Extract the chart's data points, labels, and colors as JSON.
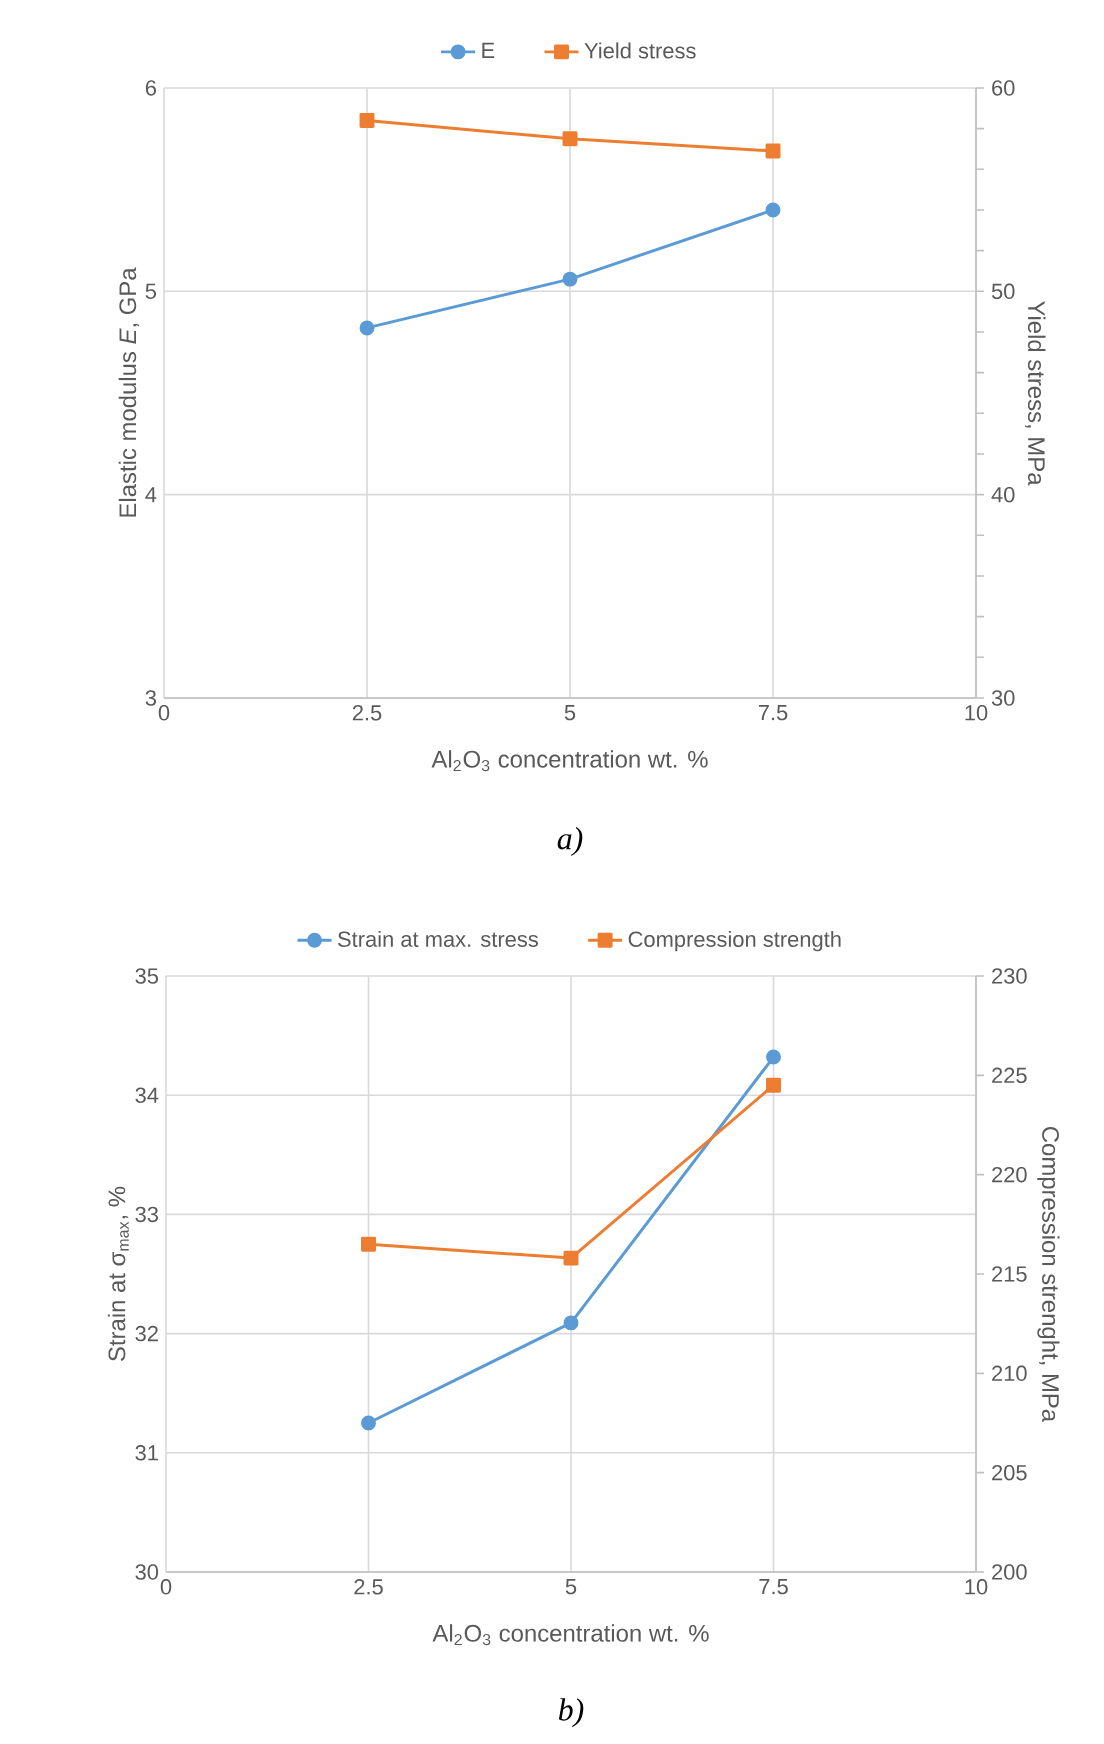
{
  "chart_data": [
    {
      "type": "line",
      "xlabel": "Al$_{2}$O$_{3}$ concentration wt. %",
      "ylabel": "Elastic modulus *E*, GPa",
      "y2label": "Yield stress, MPa",
      "annotations": [
        "a)"
      ],
      "x": [
        2.5,
        5,
        7.5
      ],
      "xlim": [
        0,
        10
      ],
      "xticks": [
        0,
        2.5,
        5,
        7.5,
        10
      ],
      "ylim": [
        3,
        6
      ],
      "yticks": [
        3,
        4,
        5,
        6
      ],
      "y2lim": [
        30,
        60
      ],
      "y2ticks": [
        30,
        {
          "value": 32,
          "label": null
        },
        {
          "value": 34,
          "label": null
        },
        {
          "value": 36,
          "label": null
        },
        {
          "value": 38,
          "label": null
        },
        40,
        {
          "value": 42,
          "label": null
        },
        {
          "value": 44,
          "label": null
        },
        {
          "value": 46,
          "label": null
        },
        {
          "value": 48,
          "label": null
        },
        50,
        {
          "value": 52,
          "label": null
        },
        {
          "value": 54,
          "label": null
        },
        {
          "value": 56,
          "label": null
        },
        {
          "value": 58,
          "label": null
        },
        60
      ],
      "grid": true,
      "legend": "top",
      "series": [
        {
          "name": "E",
          "color": "#5b9bd5",
          "marker": "circle",
          "values": [
            4.82,
            5.06,
            5.4
          ]
        },
        {
          "name": "Yield stress",
          "color": "#ed7d31",
          "marker": "square",
          "axis": "y2",
          "values": [
            58.4,
            57.5,
            56.9
          ]
        }
      ]
    },
    {
      "type": "line",
      "xlabel": "Al$_{2}$O$_{3}$ concentration wt. %",
      "ylabel": "Strain at σ$_{max}$, %",
      "y2label": "Compression strenght, MPa",
      "annotations": [
        "b)"
      ],
      "x": [
        2.5,
        5,
        7.5
      ],
      "xlim": [
        0,
        10
      ],
      "xticks": [
        0,
        2.5,
        5,
        7.5,
        10
      ],
      "ylim": [
        30,
        35
      ],
      "yticks": [
        30,
        31,
        32,
        33,
        34,
        35
      ],
      "y2lim": [
        200,
        230
      ],
      "y2ticks": [
        200,
        205,
        210,
        215,
        220,
        225,
        230
      ],
      "grid": true,
      "legend": "top",
      "series": [
        {
          "name": "Strain at max. stress",
          "color": "#5b9bd5",
          "marker": "circle",
          "values": [
            31.25,
            32.09,
            34.32
          ]
        },
        {
          "name": "Compression strength",
          "color": "#ed7d31",
          "marker": "square",
          "axis": "y2",
          "values": [
            216.5,
            215.8,
            224.5
          ]
        }
      ]
    }
  ]
}
